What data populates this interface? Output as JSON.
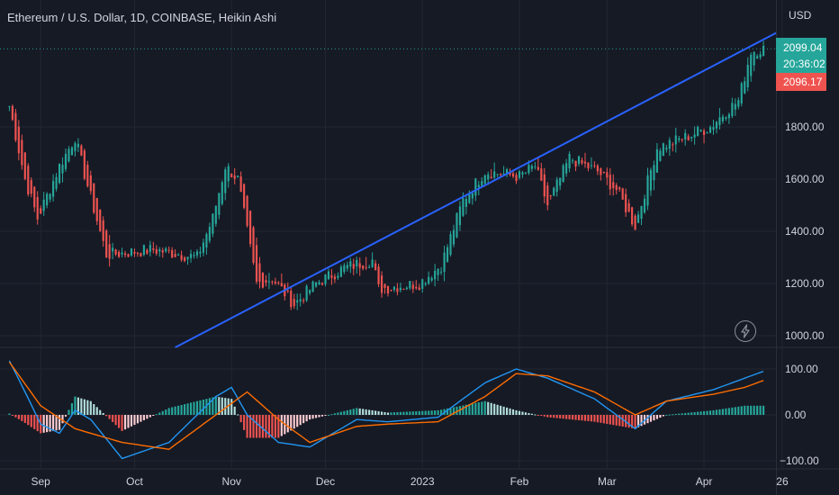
{
  "header": {
    "title": "Ethereum / U.S. Dollar, 1D, COINBASE, Heikin Ashi",
    "currency": "USD"
  },
  "price_badges": {
    "last_price": "2099.04",
    "countdown": "20:36:02",
    "prev_price": "2096.17",
    "last_color": "#26a69a",
    "prev_color": "#ef5350"
  },
  "icons": {
    "flash": "lightning-bolt-icon"
  },
  "colors": {
    "background": "#161a25",
    "up_candle": "#26a69a",
    "down_candle": "#ef5350",
    "trendline": "#2962ff",
    "macd_line": "#2196f3",
    "signal_line": "#ff6d00"
  },
  "chart_data": [
    {
      "type": "candlestick",
      "name": "price",
      "x_tick_labels": [
        "Sep",
        "Oct",
        "Nov",
        "Dec",
        "2023",
        "Feb",
        "Mar",
        "Apr",
        "26"
      ],
      "y_tick_labels": [
        "1800.00",
        "1600.00",
        "1400.00",
        "1200.00",
        "1000.00"
      ],
      "ylim": [
        955,
        2160
      ],
      "close_key_points": [
        {
          "date": "2022-08-22",
          "close": 1880
        },
        {
          "date": "2022-08-27",
          "close": 1600
        },
        {
          "date": "2022-08-31",
          "close": 1450
        },
        {
          "date": "2022-09-07",
          "close": 1650
        },
        {
          "date": "2022-09-12",
          "close": 1760
        },
        {
          "date": "2022-09-15",
          "close": 1620
        },
        {
          "date": "2022-09-22",
          "close": 1310
        },
        {
          "date": "2022-10-07",
          "close": 1330
        },
        {
          "date": "2022-10-21",
          "close": 1300
        },
        {
          "date": "2022-10-26",
          "close": 1450
        },
        {
          "date": "2022-10-30",
          "close": 1650
        },
        {
          "date": "2022-11-03",
          "close": 1600
        },
        {
          "date": "2022-11-09",
          "close": 1200
        },
        {
          "date": "2022-11-14",
          "close": 1220
        },
        {
          "date": "2022-11-21",
          "close": 1120
        },
        {
          "date": "2022-11-28",
          "close": 1200
        },
        {
          "date": "2022-12-07",
          "close": 1260
        },
        {
          "date": "2022-12-16",
          "close": 1290
        },
        {
          "date": "2022-12-18",
          "close": 1180
        },
        {
          "date": "2022-12-31",
          "close": 1200
        },
        {
          "date": "2023-01-07",
          "close": 1270
        },
        {
          "date": "2023-01-14",
          "close": 1520
        },
        {
          "date": "2023-01-21",
          "close": 1630
        },
        {
          "date": "2023-02-01",
          "close": 1610
        },
        {
          "date": "2023-02-06",
          "close": 1650
        },
        {
          "date": "2023-02-10",
          "close": 1500
        },
        {
          "date": "2023-02-17",
          "close": 1680
        },
        {
          "date": "2023-02-26",
          "close": 1630
        },
        {
          "date": "2023-03-04",
          "close": 1560
        },
        {
          "date": "2023-03-10",
          "close": 1420
        },
        {
          "date": "2023-03-17",
          "close": 1720
        },
        {
          "date": "2023-03-26",
          "close": 1760
        },
        {
          "date": "2023-04-03",
          "close": 1800
        },
        {
          "date": "2023-04-08",
          "close": 1860
        },
        {
          "date": "2023-04-12",
          "close": 1900
        },
        {
          "date": "2023-04-16",
          "close": 2090
        },
        {
          "date": "2023-04-20",
          "close": 2099.04
        }
      ],
      "trendline": [
        {
          "date": "2022-10-14",
          "price": 955
        },
        {
          "date": "2023-04-24",
          "price": 2160
        }
      ]
    },
    {
      "type": "macd",
      "name": "macd",
      "y_tick_labels": [
        "100.00",
        "0.00",
        "−100.00"
      ],
      "ylim": [
        -110,
        115
      ],
      "series": [
        {
          "points": [
            {
              "date": "2022-08-22",
              "value": 118
            },
            {
              "date": "2022-08-27",
              "value": 50
            },
            {
              "date": "2022-09-01",
              "value": -20
            },
            {
              "date": "2022-09-07",
              "value": -40
            },
            {
              "date": "2022-09-12",
              "value": 10
            },
            {
              "date": "2022-09-17",
              "value": -10
            },
            {
              "date": "2022-09-27",
              "value": -95
            },
            {
              "date": "2022-10-12",
              "value": -60
            },
            {
              "date": "2022-10-27",
              "value": 40
            },
            {
              "date": "2022-11-01",
              "value": 60
            },
            {
              "date": "2022-11-06",
              "value": 0
            },
            {
              "date": "2022-11-16",
              "value": -60
            },
            {
              "date": "2022-11-26",
              "value": -70
            },
            {
              "date": "2022-12-11",
              "value": -10
            },
            {
              "date": "2022-12-21",
              "value": -15
            },
            {
              "date": "2023-01-06",
              "value": -5
            },
            {
              "date": "2023-01-21",
              "value": 70
            },
            {
              "date": "2023-01-31",
              "value": 100
            },
            {
              "date": "2023-02-10",
              "value": 80
            },
            {
              "date": "2023-02-25",
              "value": 35
            },
            {
              "date": "2023-03-10",
              "value": -30
            },
            {
              "date": "2023-03-20",
              "value": 30
            },
            {
              "date": "2023-04-04",
              "value": 55
            },
            {
              "date": "2023-04-14",
              "value": 80
            },
            {
              "date": "2023-04-20",
              "value": 95
            }
          ]
        },
        {
          "points": [
            {
              "date": "2022-08-22",
              "value": 115
            },
            {
              "date": "2022-09-01",
              "value": 20
            },
            {
              "date": "2022-09-12",
              "value": -30
            },
            {
              "date": "2022-09-27",
              "value": -60
            },
            {
              "date": "2022-10-12",
              "value": -75
            },
            {
              "date": "2022-10-27",
              "value": 0
            },
            {
              "date": "2022-11-06",
              "value": 50
            },
            {
              "date": "2022-11-16",
              "value": -10
            },
            {
              "date": "2022-11-26",
              "value": -60
            },
            {
              "date": "2022-12-11",
              "value": -25
            },
            {
              "date": "2022-12-21",
              "value": -20
            },
            {
              "date": "2023-01-06",
              "value": -15
            },
            {
              "date": "2023-01-21",
              "value": 40
            },
            {
              "date": "2023-01-31",
              "value": 90
            },
            {
              "date": "2023-02-10",
              "value": 85
            },
            {
              "date": "2023-02-25",
              "value": 50
            },
            {
              "date": "2023-03-10",
              "value": 0
            },
            {
              "date": "2023-03-20",
              "value": 30
            },
            {
              "date": "2023-04-04",
              "value": 45
            },
            {
              "date": "2023-04-14",
              "value": 60
            },
            {
              "date": "2023-04-20",
              "value": 75
            }
          ]
        }
      ]
    }
  ]
}
